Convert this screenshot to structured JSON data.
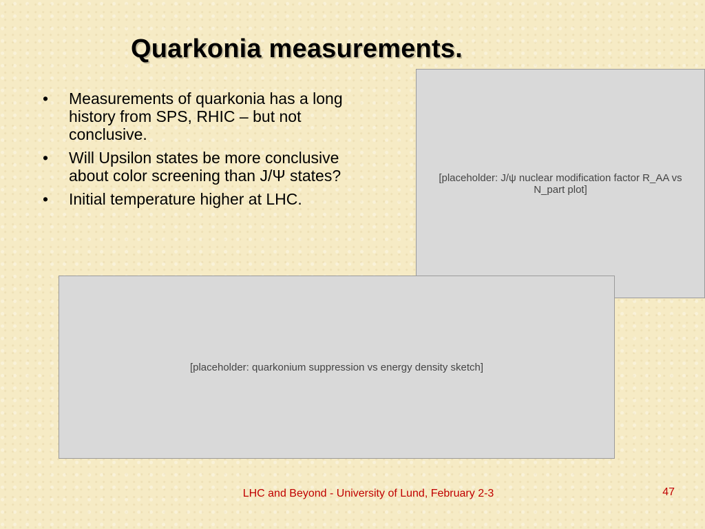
{
  "slide": {
    "title": "Quarkonia measurements.",
    "bullets": [
      "Measurements of quarkonia has a long history from SPS, RHIC – but not conclusive.",
      "Will Upsilon states be more conclusive about color screening than J/Ψ states?",
      "Initial temperature higher at LHC."
    ],
    "footer": "LHC and Beyond - University of Lund, February 2-3",
    "page_number": "47"
  },
  "figures": {
    "phenix_plot": "[placeholder: J/ψ nuclear modification factor R_AA vs N_part plot]",
    "suppression_plot": "[placeholder: quarkonium suppression vs energy density sketch]"
  },
  "colors": {
    "background": "#f6ebc5",
    "footer_text": "#c00000"
  }
}
